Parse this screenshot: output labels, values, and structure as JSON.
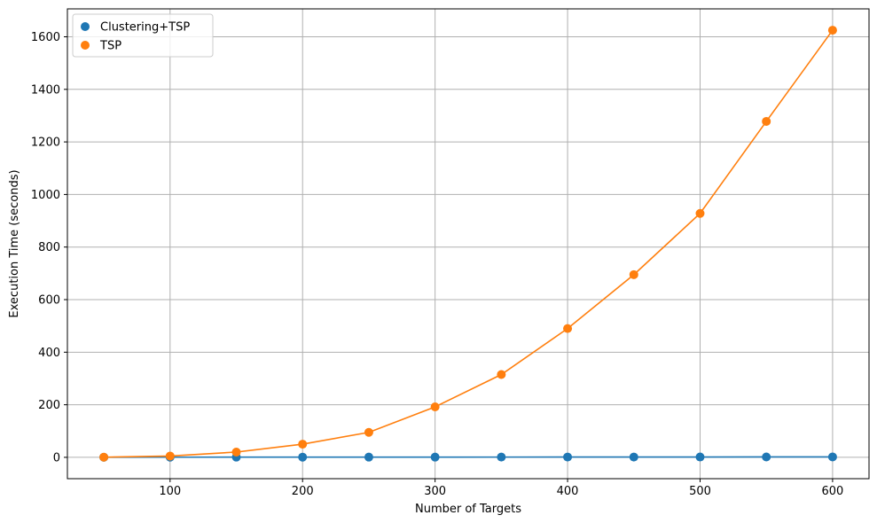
{
  "chart_data": {
    "type": "line",
    "title": "",
    "xlabel": "Number of Targets",
    "ylabel": "Execution Time (seconds)",
    "x": [
      50,
      100,
      150,
      200,
      250,
      300,
      350,
      400,
      450,
      500,
      550,
      600
    ],
    "xlim": [
      22.5,
      627.5
    ],
    "ylim": [
      -81.2,
      1706.2
    ],
    "xticks": [
      100,
      200,
      300,
      400,
      500,
      600
    ],
    "yticks": [
      0,
      200,
      400,
      600,
      800,
      1000,
      1200,
      1400,
      1600
    ],
    "grid": true,
    "legend_position": "top-left",
    "series": [
      {
        "name": "Clustering+TSP",
        "color": "#1f77b4",
        "values": [
          0.3,
          0.6,
          0.8,
          0.7,
          0.8,
          0.9,
          1.0,
          1.1,
          1.2,
          1.3,
          1.5,
          1.6
        ]
      },
      {
        "name": "TSP",
        "color": "#ff7f0e",
        "values": [
          0.5,
          5,
          20,
          50,
          95,
          192,
          315,
          490,
          695,
          928,
          1278,
          1625
        ]
      }
    ]
  }
}
